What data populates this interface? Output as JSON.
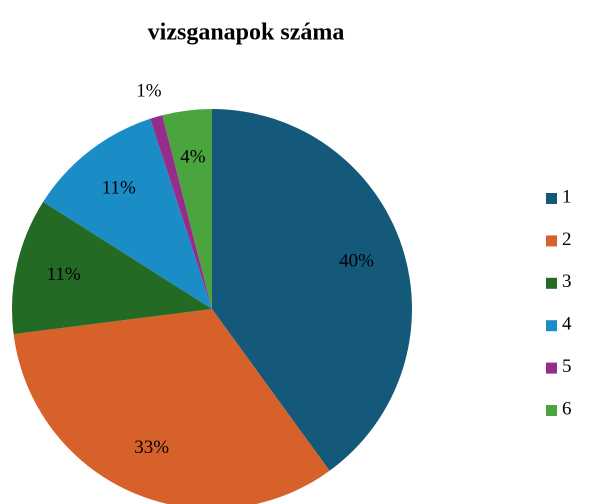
{
  "chart_data": {
    "type": "pie",
    "title": "vizsganapok száma",
    "categories": [
      "1",
      "2",
      "3",
      "4",
      "5",
      "6"
    ],
    "values": [
      40,
      33,
      11,
      11,
      1,
      4
    ],
    "value_labels": [
      "40%",
      "33%",
      "11%",
      "11%",
      "1%",
      "4%"
    ],
    "colors": [
      "#14597a",
      "#d6612a",
      "#236b25",
      "#1a8cc6",
      "#962c8c",
      "#4aa53e"
    ],
    "legend": "right"
  }
}
